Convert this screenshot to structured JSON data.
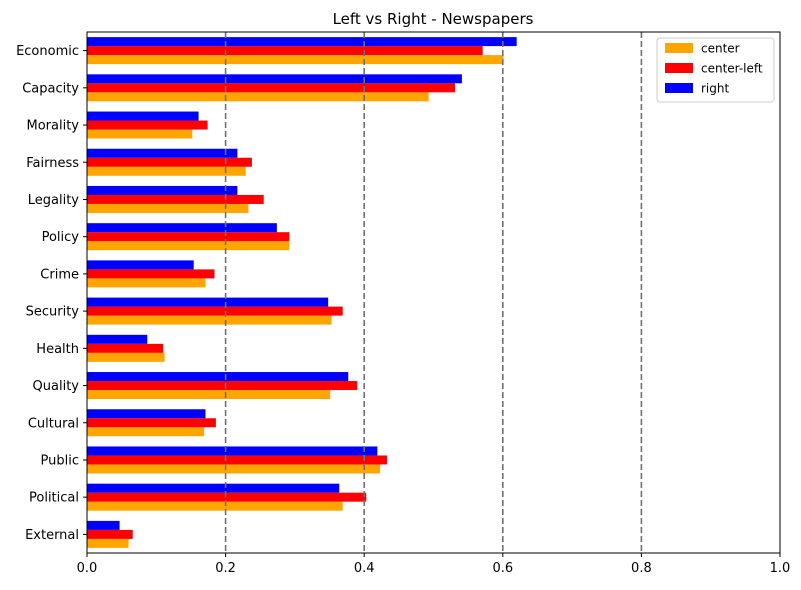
{
  "chart_data": {
    "type": "bar",
    "orientation": "horizontal",
    "title": "Left vs Right - Newspapers",
    "xlabel": "",
    "ylabel": "",
    "xlim": [
      0,
      1.0
    ],
    "xticks": [
      "0.0",
      "0.2",
      "0.4",
      "0.6",
      "0.8",
      "1.0"
    ],
    "reference_lines": [
      0.2,
      0.4,
      0.6,
      0.8
    ],
    "categories": [
      "Economic",
      "Capacity",
      "Morality",
      "Fairness",
      "Legality",
      "Policy",
      "Crime",
      "Security",
      "Health",
      "Quality",
      "Cultural",
      "Public",
      "Political",
      "External"
    ],
    "series": [
      {
        "name": "center",
        "color": "#FFA500",
        "values": [
          0.601,
          0.493,
          0.152,
          0.229,
          0.233,
          0.292,
          0.171,
          0.353,
          0.112,
          0.351,
          0.169,
          0.423,
          0.369,
          0.06
        ]
      },
      {
        "name": "center-left",
        "color": "#FF0000",
        "values": [
          0.571,
          0.531,
          0.174,
          0.238,
          0.255,
          0.292,
          0.184,
          0.369,
          0.11,
          0.39,
          0.186,
          0.433,
          0.403,
          0.066
        ]
      },
      {
        "name": "right",
        "color": "#0000FF",
        "values": [
          0.62,
          0.541,
          0.161,
          0.217,
          0.217,
          0.274,
          0.154,
          0.348,
          0.087,
          0.377,
          0.171,
          0.419,
          0.364,
          0.047
        ]
      }
    ],
    "legend_position": "top-right",
    "grid": false
  }
}
